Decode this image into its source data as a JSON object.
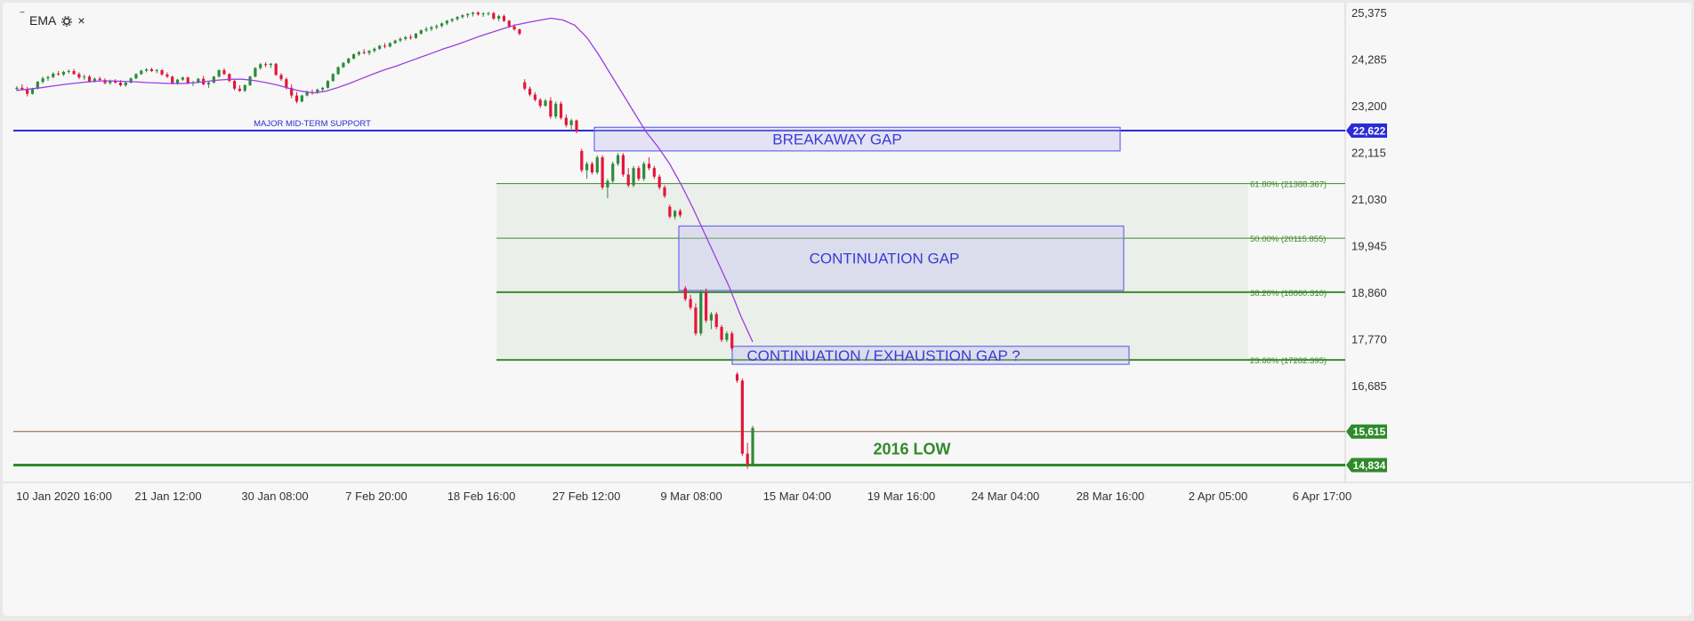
{
  "indicator": {
    "collapse_icon": "minus-icon",
    "label": "EMA",
    "settings_icon": "gear-icon",
    "close_icon": "close-icon",
    "close_glyph": "×",
    "collapse_glyph": "‾"
  },
  "colors": {
    "up": "#2e8b3a",
    "down": "#e3163a",
    "ema": "#9b3ee0",
    "support": "#2b2bd6",
    "fib": "#3f8a2a",
    "low_line": "#2f8a2a",
    "ref_line": "#8b5a3c",
    "box_fill": "rgba(190,190,240,0.35)",
    "box_border": "#6a6ae8",
    "fib_zone": "rgba(200,215,195,0.25)"
  },
  "chart_data": {
    "type": "candlestick",
    "title": "",
    "y_axis": {
      "ticks": [
        "25,375",
        "24,285",
        "23,200",
        "22,115",
        "21,030",
        "19,945",
        "18,860",
        "17,770",
        "16,685"
      ],
      "tick_values": [
        25375,
        24285,
        23200,
        22115,
        21030,
        19945,
        18860,
        17770,
        16685
      ]
    },
    "x_axis": {
      "ticks": [
        "10 Jan 2020 16:00",
        "21 Jan 12:00",
        "30 Jan 08:00",
        "7 Feb 20:00",
        "18 Feb 16:00",
        "27 Feb 12:00",
        "9 Mar 08:00",
        "15 Mar 04:00",
        "19 Mar 16:00",
        "24 Mar 04:00",
        "28 Mar 16:00",
        "2 Apr 05:00",
        "6 Apr 17:00"
      ]
    },
    "price_badges": [
      {
        "label": "22,622",
        "value": 22622,
        "color": "#2b2bd6"
      },
      {
        "label": "15,615",
        "value": 15615,
        "color": "#2f8a2a"
      },
      {
        "label": "14,834",
        "value": 14834,
        "color": "#2f8a2a"
      }
    ],
    "horizontal_lines": [
      {
        "name": "support",
        "value": 22622,
        "label": "MAJOR MID-TERM SUPPORT"
      },
      {
        "name": "ref",
        "value": 15615
      },
      {
        "name": "low",
        "value": 14834,
        "label": "2016 LOW"
      }
    ],
    "fibonacci": [
      {
        "label": "61.80% (21388.367)",
        "value": 21388.367
      },
      {
        "label": "50.00% (20115.855)",
        "value": 20115.855
      },
      {
        "label": "38.20% (18860.310)",
        "value": 18860.31
      },
      {
        "label": "23.60% (17282.395)",
        "value": 17282.395
      }
    ],
    "annotations": [
      {
        "label": "BREAKAWAY GAP",
        "y_top": 22700,
        "y_bottom": 22150
      },
      {
        "label": "CONTINUATION GAP",
        "y_top": 20400,
        "y_bottom": 18900
      },
      {
        "label": "CONTINUATION / EXHAUSTION GAP ?",
        "y_top": 17600,
        "y_bottom": 17180
      }
    ],
    "candles": [
      [
        23590,
        23660,
        23540,
        23620
      ],
      [
        23620,
        23700,
        23560,
        23590
      ],
      [
        23590,
        23640,
        23420,
        23480
      ],
      [
        23480,
        23620,
        23460,
        23600
      ],
      [
        23600,
        23780,
        23580,
        23760
      ],
      [
        23760,
        23880,
        23720,
        23840
      ],
      [
        23840,
        23900,
        23780,
        23870
      ],
      [
        23870,
        23980,
        23840,
        23950
      ],
      [
        23950,
        24010,
        23900,
        23930
      ],
      [
        23930,
        24020,
        23890,
        23990
      ],
      [
        23990,
        24050,
        23950,
        24010
      ],
      [
        24010,
        24060,
        23920,
        23940
      ],
      [
        23940,
        23980,
        23820,
        23860
      ],
      [
        23860,
        23930,
        23800,
        23880
      ],
      [
        23880,
        23920,
        23740,
        23770
      ],
      [
        23770,
        23860,
        23740,
        23830
      ],
      [
        23830,
        23880,
        23770,
        23800
      ],
      [
        23800,
        23840,
        23700,
        23730
      ],
      [
        23730,
        23810,
        23690,
        23780
      ],
      [
        23780,
        23820,
        23720,
        23740
      ],
      [
        23740,
        23800,
        23650,
        23680
      ],
      [
        23680,
        23760,
        23640,
        23740
      ],
      [
        23740,
        23860,
        23720,
        23840
      ],
      [
        23840,
        23960,
        23820,
        23940
      ],
      [
        23940,
        24040,
        23920,
        24020
      ],
      [
        24020,
        24080,
        23980,
        24050
      ],
      [
        24050,
        24090,
        23990,
        24010
      ],
      [
        24010,
        24060,
        23960,
        24030
      ],
      [
        24030,
        24060,
        23900,
        23930
      ],
      [
        23930,
        23980,
        23850,
        23880
      ],
      [
        23880,
        23900,
        23700,
        23720
      ],
      [
        23720,
        23830,
        23690,
        23810
      ],
      [
        23810,
        23880,
        23780,
        23860
      ],
      [
        23860,
        23880,
        23700,
        23720
      ],
      [
        23720,
        23780,
        23660,
        23750
      ],
      [
        23750,
        23850,
        23720,
        23830
      ],
      [
        23830,
        23900,
        23680,
        23700
      ],
      [
        23700,
        23760,
        23620,
        23740
      ],
      [
        23740,
        23900,
        23720,
        23880
      ],
      [
        23880,
        24050,
        23860,
        24030
      ],
      [
        24030,
        24080,
        23920,
        23940
      ],
      [
        23940,
        23960,
        23750,
        23780
      ],
      [
        23780,
        23820,
        23560,
        23600
      ],
      [
        23600,
        23680,
        23520,
        23550
      ],
      [
        23550,
        23700,
        23520,
        23680
      ],
      [
        23680,
        23900,
        23660,
        23880
      ],
      [
        23880,
        24100,
        23860,
        24080
      ],
      [
        24080,
        24200,
        24040,
        24170
      ],
      [
        24170,
        24220,
        24100,
        24150
      ],
      [
        24150,
        24200,
        24080,
        24180
      ],
      [
        24180,
        24200,
        23900,
        23920
      ],
      [
        23920,
        23960,
        23780,
        23820
      ],
      [
        23820,
        23860,
        23580,
        23620
      ],
      [
        23620,
        23700,
        23380,
        23440
      ],
      [
        23440,
        23520,
        23260,
        23300
      ],
      [
        23300,
        23460,
        23280,
        23440
      ],
      [
        23440,
        23560,
        23420,
        23520
      ],
      [
        23520,
        23580,
        23460,
        23500
      ],
      [
        23500,
        23600,
        23480,
        23580
      ],
      [
        23580,
        23640,
        23540,
        23620
      ],
      [
        23620,
        23800,
        23600,
        23780
      ],
      [
        23780,
        23960,
        23760,
        23940
      ],
      [
        23940,
        24120,
        23920,
        24100
      ],
      [
        24100,
        24220,
        24080,
        24200
      ],
      [
        24200,
        24320,
        24180,
        24300
      ],
      [
        24300,
        24420,
        24280,
        24400
      ],
      [
        24400,
        24480,
        24360,
        24450
      ],
      [
        24450,
        24520,
        24400,
        24430
      ],
      [
        24430,
        24500,
        24380,
        24480
      ],
      [
        24480,
        24560,
        24440,
        24530
      ],
      [
        24530,
        24620,
        24500,
        24600
      ],
      [
        24600,
        24660,
        24540,
        24580
      ],
      [
        24580,
        24680,
        24560,
        24660
      ],
      [
        24660,
        24740,
        24640,
        24720
      ],
      [
        24720,
        24800,
        24680,
        24760
      ],
      [
        24760,
        24830,
        24720,
        24800
      ],
      [
        24800,
        24860,
        24740,
        24780
      ],
      [
        24780,
        24900,
        24760,
        24880
      ],
      [
        24880,
        24980,
        24860,
        24960
      ],
      [
        24960,
        25040,
        24920,
        24990
      ],
      [
        24990,
        25060,
        24940,
        25030
      ],
      [
        25030,
        25100,
        24980,
        25060
      ],
      [
        25060,
        25140,
        25020,
        25120
      ],
      [
        25120,
        25200,
        25080,
        25180
      ],
      [
        25180,
        25240,
        25140,
        25220
      ],
      [
        25220,
        25290,
        25180,
        25270
      ],
      [
        25270,
        25330,
        25230,
        25310
      ],
      [
        25310,
        25360,
        25250,
        25340
      ],
      [
        25340,
        25390,
        25280,
        25370
      ],
      [
        25370,
        25400,
        25300,
        25330
      ],
      [
        25330,
        25380,
        25270,
        25350
      ],
      [
        25350,
        25390,
        25300,
        25360
      ],
      [
        25360,
        25390,
        25200,
        25230
      ],
      [
        25230,
        25320,
        25170,
        25290
      ],
      [
        25290,
        25330,
        25150,
        25180
      ],
      [
        25180,
        25200,
        25020,
        25050
      ],
      [
        25050,
        25100,
        24950,
        24980
      ],
      [
        24980,
        25000,
        24840,
        24880
      ],
      [
        23750,
        23820,
        23560,
        23600
      ],
      [
        23600,
        23650,
        23420,
        23460
      ],
      [
        23460,
        23520,
        23300,
        23340
      ],
      [
        23340,
        23380,
        23150,
        23200
      ],
      [
        23200,
        23360,
        23180,
        23320
      ],
      [
        23320,
        23400,
        22900,
        22950
      ],
      [
        22950,
        23300,
        22900,
        23250
      ],
      [
        23250,
        23300,
        22880,
        22920
      ],
      [
        22920,
        23000,
        22700,
        22750
      ],
      [
        22750,
        22900,
        22600,
        22860
      ],
      [
        22860,
        22880,
        22560,
        22600
      ],
      [
        22150,
        22200,
        21650,
        21700
      ],
      [
        21700,
        21900,
        21500,
        21850
      ],
      [
        21850,
        21900,
        21600,
        21650
      ],
      [
        21650,
        22050,
        21600,
        22000
      ],
      [
        22000,
        22050,
        21250,
        21300
      ],
      [
        21300,
        21500,
        21050,
        21450
      ],
      [
        21450,
        21900,
        21400,
        21850
      ],
      [
        21850,
        22100,
        21800,
        22050
      ],
      [
        22050,
        22100,
        21550,
        21600
      ],
      [
        21600,
        21750,
        21300,
        21350
      ],
      [
        21350,
        21800,
        21300,
        21750
      ],
      [
        21750,
        21800,
        21450,
        21500
      ],
      [
        21500,
        21900,
        21450,
        21850
      ],
      [
        21850,
        22000,
        21700,
        21750
      ],
      [
        21750,
        21800,
        21500,
        21550
      ],
      [
        21550,
        21600,
        21250,
        21300
      ],
      [
        21300,
        21350,
        21050,
        21100
      ],
      [
        20850,
        20900,
        20580,
        20620
      ],
      [
        20620,
        20780,
        20550,
        20750
      ],
      [
        20750,
        20800,
        20600,
        20650
      ],
      [
        18950,
        19000,
        18650,
        18700
      ],
      [
        18700,
        18800,
        18450,
        18500
      ],
      [
        18500,
        18600,
        17850,
        17900
      ],
      [
        17900,
        18900,
        17850,
        18850
      ],
      [
        18850,
        18950,
        18150,
        18200
      ],
      [
        18200,
        18400,
        18000,
        18350
      ],
      [
        18350,
        18400,
        18000,
        18050
      ],
      [
        18050,
        18100,
        17700,
        17750
      ],
      [
        17750,
        17950,
        17700,
        17900
      ],
      [
        17900,
        17950,
        17500,
        17550
      ],
      [
        16950,
        17000,
        16750,
        16800
      ],
      [
        16800,
        16850,
        15050,
        15100
      ],
      [
        15100,
        15350,
        14750,
        14850
      ],
      [
        14850,
        15750,
        14830,
        15700
      ]
    ],
    "ema": [
      23560,
      23590,
      23620,
      23660,
      23700,
      23730,
      23760,
      23780,
      23780,
      23770,
      23760,
      23740,
      23730,
      23720,
      23720,
      23740,
      23770,
      23800,
      23820,
      23820,
      23790,
      23740,
      23680,
      23600,
      23540,
      23500,
      23540,
      23620,
      23720,
      23830,
      23940,
      24040,
      24130,
      24230,
      24330,
      24430,
      24530,
      24620,
      24720,
      24820,
      24910,
      25000,
      25080,
      25140,
      25190,
      25240,
      25200,
      25080,
      24800,
      24400,
      23950,
      23500,
      23050,
      22600,
      22250,
      21850,
      21350,
      20800,
      20200,
      19600,
      19000,
      18300,
      17700
    ]
  }
}
